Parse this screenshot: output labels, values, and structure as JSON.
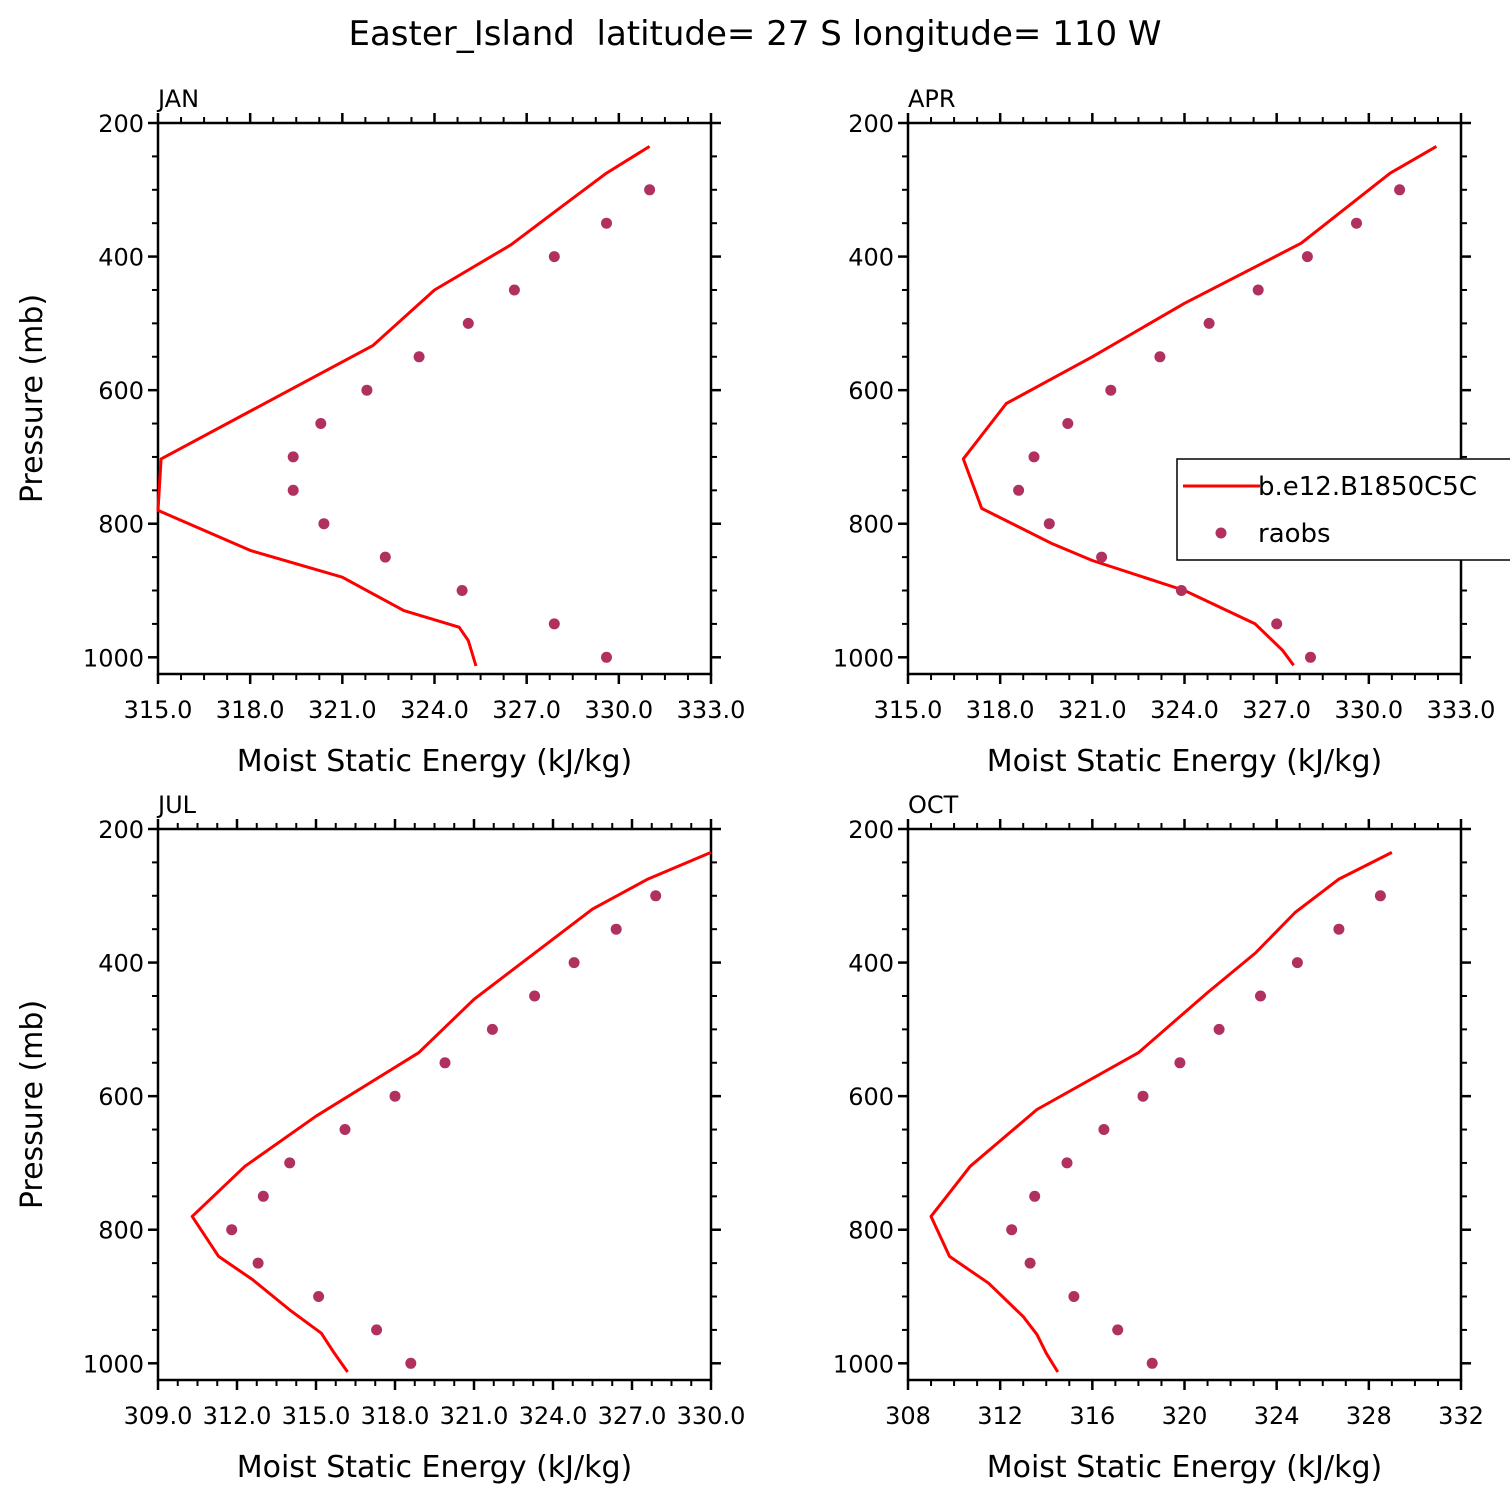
{
  "chart_data": {
    "type": "line",
    "title": "Easter_Island  latitude= 27 S longitude= 110 W",
    "legend": {
      "placement": "right of APR panel",
      "entries": [
        {
          "label": "b.e12.B1850C5C",
          "kind": "line",
          "color": "#ff0000"
        },
        {
          "label": "raobs",
          "kind": "marker",
          "color": "#b03060"
        }
      ]
    },
    "model_color": "#ff0000",
    "obs_color": "#b03060",
    "panels": [
      {
        "name": "JAN",
        "xlabel": "Moist Static Energy (kJ/kg)",
        "ylabel": "Pressure (mb)",
        "xlim": [
          315,
          333
        ],
        "ylim": [
          200,
          1025
        ],
        "xticks": [
          315,
          318,
          321,
          324,
          327,
          330,
          333
        ],
        "xtick_labels": [
          "315.0",
          "318.0",
          "321.0",
          "324.0",
          "327.0",
          "330.0",
          "333.0"
        ],
        "yticks": [
          200,
          400,
          600,
          800,
          1000
        ],
        "ytick_labels": [
          "200",
          "400",
          "600",
          "800",
          "1000"
        ],
        "series": [
          {
            "name": "b.e12.B1850C5C",
            "kind": "line",
            "x": [
              331.0,
              329.6,
              328.0,
              326.5,
              324.0,
              322.0,
              315.1,
              315.0,
              318.0,
              321.0,
              322.0,
              323.0,
              324.8,
              325.1,
              325.35
            ],
            "y": [
              235,
              275,
              330,
              382,
              450,
              533,
              703,
              780,
              840,
              880,
              905,
              930,
              955,
              975,
              1013
            ]
          },
          {
            "name": "raobs",
            "kind": "scatter",
            "x": [
              331.0,
              329.6,
              327.9,
              326.6,
              325.1,
              323.5,
              321.8,
              320.3,
              319.4,
              319.4,
              320.4,
              322.4,
              324.9,
              327.9,
              329.6
            ],
            "y": [
              300,
              350,
              400,
              450,
              500,
              550,
              600,
              650,
              700,
              750,
              800,
              850,
              900,
              950,
              1000
            ]
          }
        ]
      },
      {
        "name": "APR",
        "xlabel": "Moist Static Energy (kJ/kg)",
        "ylabel": "",
        "xlim": [
          315,
          333
        ],
        "ylim": [
          200,
          1025
        ],
        "xticks": [
          315,
          318,
          321,
          324,
          327,
          330,
          333
        ],
        "xtick_labels": [
          "315.0",
          "318.0",
          "321.0",
          "324.0",
          "327.0",
          "330.0",
          "333.0"
        ],
        "yticks": [
          200,
          400,
          600,
          800,
          1000
        ],
        "ytick_labels": [
          "200",
          "400",
          "600",
          "800",
          "1000"
        ],
        "series": [
          {
            "name": "b.e12.B1850C5C",
            "kind": "line",
            "x": [
              332.2,
              330.7,
              327.8,
              324.0,
              321.0,
              318.2,
              316.8,
              317.4,
              319.7,
              321.0,
              324.0,
              326.3,
              327.2,
              327.55
            ],
            "y": [
              235,
              275,
              380,
              470,
              550,
              620,
              703,
              777,
              830,
              855,
              900,
              950,
              990,
              1012
            ]
          },
          {
            "name": "raobs",
            "kind": "scatter",
            "x": [
              331.0,
              329.6,
              328.0,
              326.4,
              324.8,
              323.2,
              321.6,
              320.2,
              319.1,
              318.6,
              319.6,
              321.3,
              323.9,
              327.0,
              328.1
            ],
            "y": [
              300,
              350,
              400,
              450,
              500,
              550,
              600,
              650,
              700,
              750,
              800,
              850,
              900,
              950,
              1000
            ]
          }
        ]
      },
      {
        "name": "JUL",
        "xlabel": "Moist Static Energy (kJ/kg)",
        "ylabel": "Pressure (mb)",
        "xlim": [
          309,
          330
        ],
        "ylim": [
          200,
          1025
        ],
        "xticks": [
          309,
          312,
          315,
          318,
          321,
          324,
          327,
          330
        ],
        "xtick_labels": [
          "309.0",
          "312.0",
          "315.0",
          "318.0",
          "321.0",
          "324.0",
          "327.0",
          "330.0"
        ],
        "yticks": [
          200,
          400,
          600,
          800,
          1000
        ],
        "ytick_labels": [
          "200",
          "400",
          "600",
          "800",
          "1000"
        ],
        "series": [
          {
            "name": "b.e12.B1850C5C",
            "kind": "line",
            "x": [
              330.0,
              327.6,
              325.5,
              323.5,
              321.0,
              318.9,
              315.0,
              312.3,
              310.3,
              311.3,
              312.6,
              314.0,
              315.2,
              315.7,
              316.2
            ],
            "y": [
              235,
              275,
              320,
              380,
              455,
              535,
              630,
              705,
              780,
              840,
              875,
              920,
              955,
              985,
              1013
            ]
          },
          {
            "name": "raobs",
            "kind": "scatter",
            "x": [
              327.9,
              326.4,
              324.8,
              323.3,
              321.7,
              319.9,
              318.0,
              316.1,
              314.0,
              313.0,
              311.8,
              312.8,
              315.1,
              317.3,
              318.6
            ],
            "y": [
              300,
              350,
              400,
              450,
              500,
              550,
              600,
              650,
              700,
              750,
              800,
              850,
              900,
              950,
              1000
            ]
          }
        ]
      },
      {
        "name": "OCT",
        "xlabel": "Moist Static Energy (kJ/kg)",
        "ylabel": "",
        "xlim": [
          308,
          332
        ],
        "ylim": [
          200,
          1025
        ],
        "xticks": [
          308,
          312,
          316,
          320,
          324,
          328,
          332
        ],
        "xtick_labels": [
          "308",
          "312",
          "316",
          "320",
          "324",
          "328",
          "332"
        ],
        "yticks": [
          200,
          400,
          600,
          800,
          1000
        ],
        "ytick_labels": [
          "200",
          "400",
          "600",
          "800",
          "1000"
        ],
        "series": [
          {
            "name": "b.e12.B1850C5C",
            "kind": "line",
            "x": [
              329.0,
              326.7,
              324.8,
              323.1,
              321.0,
              318.0,
              313.6,
              310.7,
              309.0,
              309.8,
              311.5,
              313.0,
              313.6,
              314.0,
              314.5
            ],
            "y": [
              235,
              275,
              325,
              385,
              445,
              535,
              620,
              705,
              780,
              840,
              880,
              930,
              957,
              985,
              1013
            ]
          },
          {
            "name": "raobs",
            "kind": "scatter",
            "x": [
              328.5,
              326.7,
              324.9,
              323.3,
              321.5,
              319.8,
              318.2,
              316.5,
              314.9,
              313.5,
              312.5,
              313.3,
              315.2,
              317.1,
              318.6
            ],
            "y": [
              300,
              350,
              400,
              450,
              500,
              550,
              600,
              650,
              700,
              750,
              800,
              850,
              900,
              950,
              1000
            ]
          }
        ]
      }
    ]
  }
}
